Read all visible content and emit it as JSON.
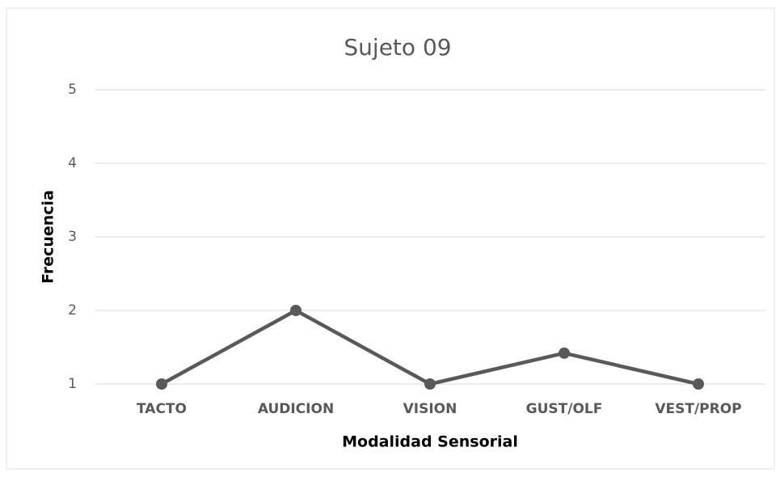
{
  "chart_data": {
    "type": "line",
    "title": "Sujeto  09",
    "x_label": "Modalidad Sensorial",
    "y_label": "Frecuencia",
    "categories": [
      "TACTO",
      "AUDICION",
      "VISION",
      "GUST/OLF",
      "VEST/PROP"
    ],
    "series": [
      {
        "name": "Sujeto 09",
        "color": "#595959",
        "values": [
          1,
          2,
          1,
          1.42,
          1
        ]
      }
    ],
    "ylim": [
      1,
      5
    ],
    "yticks": [
      1,
      2,
      3,
      4,
      5
    ],
    "grid": true
  }
}
